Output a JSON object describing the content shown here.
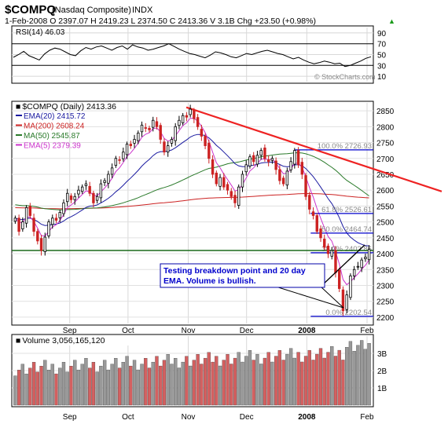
{
  "header": {
    "symbol": "$COMPQ",
    "name": "(Nasdaq Composite)",
    "exchange": "INDX",
    "quote_line": "1-Feb-2008   O 2397.07  H 2419.23  L 2374.50  C 2413.36  V 3.1B  Chg +23.50 (+0.98%)",
    "quote_arrow": "▲",
    "watermark": "© StockCharts.com"
  },
  "colors": {
    "ema20": "#1a1aa0",
    "ma200": "#cc2222",
    "ma50": "#2a7a2a",
    "ema5": "#cc33cc",
    "price": "#000000",
    "trendline": "#ee2222",
    "support": "#1a6a1a",
    "fib": "#0000cc",
    "arrow_up": "#1a9a1a",
    "callout_border": "#0000aa",
    "callout_text": "#0000cc",
    "volume_up": "#999999",
    "volume_down": "#d46060"
  },
  "rsi": {
    "label": "RSI(14) 46.03",
    "ticks": [
      "90",
      "70",
      "50",
      "30",
      "10"
    ],
    "tick_values": [
      90,
      70,
      50,
      30,
      10
    ],
    "overbought": 70,
    "oversold": 30,
    "values": [
      45,
      50,
      56,
      48,
      44,
      40,
      51,
      58,
      62,
      60,
      55,
      50,
      48,
      57,
      63,
      60,
      64,
      66,
      62,
      58,
      63,
      66,
      60,
      68,
      64,
      62,
      58,
      60,
      63,
      66,
      70,
      65,
      60,
      56,
      52,
      50,
      47,
      44,
      49,
      55,
      53,
      50,
      46,
      44,
      48,
      52,
      50,
      53,
      56,
      58,
      55,
      52,
      50,
      46,
      42,
      45,
      40,
      36,
      33,
      35,
      38,
      36,
      33,
      34,
      28,
      30,
      34,
      38,
      43,
      46
    ]
  },
  "price_panel": {
    "title": "$COMPQ (Daily) 2413.36",
    "legend": [
      {
        "label": "EMA(20) 2415.72",
        "key": "ema20"
      },
      {
        "label": "MA(200) 2608.24",
        "key": "ma200"
      },
      {
        "label": "MA(50) 2545.87",
        "key": "ma50"
      },
      {
        "label": "EMA(5) 2379.39",
        "key": "ema5"
      }
    ],
    "yticks": [
      "2850",
      "2800",
      "2750",
      "2700",
      "2650",
      "2600",
      "2550",
      "2500",
      "2450",
      "2400",
      "2350",
      "2300",
      "2250",
      "2200"
    ],
    "ytick_values": [
      2850,
      2800,
      2750,
      2700,
      2650,
      2600,
      2550,
      2500,
      2450,
      2400,
      2350,
      2300,
      2250,
      2200
    ],
    "xticks": [
      "Sep",
      "Oct",
      "Nov",
      "Dec",
      "2008",
      "Feb"
    ],
    "xtick_dates": [
      "2007-09-01",
      "2007-10-01",
      "2007-11-01",
      "2007-12-01",
      "2008-01-01",
      "2008-02-01"
    ],
    "fib_levels": [
      {
        "label": "100.0% 2726.93",
        "value": 2726.93,
        "start": "2007-12-26"
      },
      {
        "label": "61.8% 2526.61",
        "value": 2526.61,
        "start": "2008-01-03"
      },
      {
        "label": "50.0% 2464.74",
        "value": 2464.74,
        "start": "2008-01-03"
      },
      {
        "label": "38.2% 2402.86",
        "value": 2402.86,
        "start": "2008-01-03"
      },
      {
        "label": "0.0% 2202.54",
        "value": 2202.54,
        "start": "2008-01-03"
      }
    ],
    "support_level": 2410,
    "trendline": {
      "from": [
        "2007-10-31",
        2861
      ],
      "to": [
        "2008-02-11",
        2596
      ]
    },
    "callout": {
      "line1": "Testing breakdown point and 20 day",
      "line2": "EMA. Volume is bullish."
    }
  },
  "volume_panel": {
    "label": "Volume 3,056,165,120",
    "yticks": [
      "3B",
      "2B",
      "1B"
    ],
    "ytick_values": [
      3,
      2,
      1
    ],
    "xticks": [
      "Sep",
      "Oct",
      "Nov",
      "Dec",
      "2008",
      "Feb"
    ]
  },
  "chart_data": {
    "type": "candlestick",
    "title": "$COMPQ (Daily) 2413.36",
    "start_date": "2007-08-03",
    "end_date": "2008-02-01",
    "ylim": [
      2180,
      2875
    ],
    "close_approx": [
      2512,
      2470,
      2500,
      2545,
      2520,
      2470,
      2440,
      2410,
      2452,
      2500,
      2512,
      2505,
      2530,
      2560,
      2590,
      2570,
      2580,
      2600,
      2610,
      2620,
      2590,
      2560,
      2580,
      2620,
      2630,
      2650,
      2670,
      2700,
      2695,
      2720,
      2745,
      2740,
      2760,
      2780,
      2805,
      2795,
      2790,
      2820,
      2800,
      2760,
      2720,
      2740,
      2760,
      2800,
      2820,
      2835,
      2830,
      2855,
      2825,
      2800,
      2770,
      2740,
      2700,
      2650,
      2620,
      2640,
      2610,
      2600,
      2580,
      2560,
      2610,
      2650,
      2680,
      2705,
      2690,
      2710,
      2725,
      2700,
      2690,
      2700,
      2665,
      2630,
      2620,
      2660,
      2690,
      2725,
      2680,
      2650,
      2580,
      2540,
      2520,
      2470,
      2450,
      2420,
      2400,
      2410,
      2340,
      2290,
      2220,
      2270,
      2330,
      2350,
      2360,
      2380,
      2389,
      2413
    ],
    "series": [
      {
        "name": "EMA(20)",
        "last": 2415.72
      },
      {
        "name": "MA(200)",
        "last": 2608.24
      },
      {
        "name": "MA(50)",
        "last": 2545.87
      },
      {
        "name": "EMA(5)",
        "last": 2379.39
      }
    ],
    "last_bar": {
      "date": "2008-02-01",
      "open": 2397.07,
      "high": 2419.23,
      "low": 2374.5,
      "close": 2413.36,
      "volume": 3056165120
    }
  }
}
